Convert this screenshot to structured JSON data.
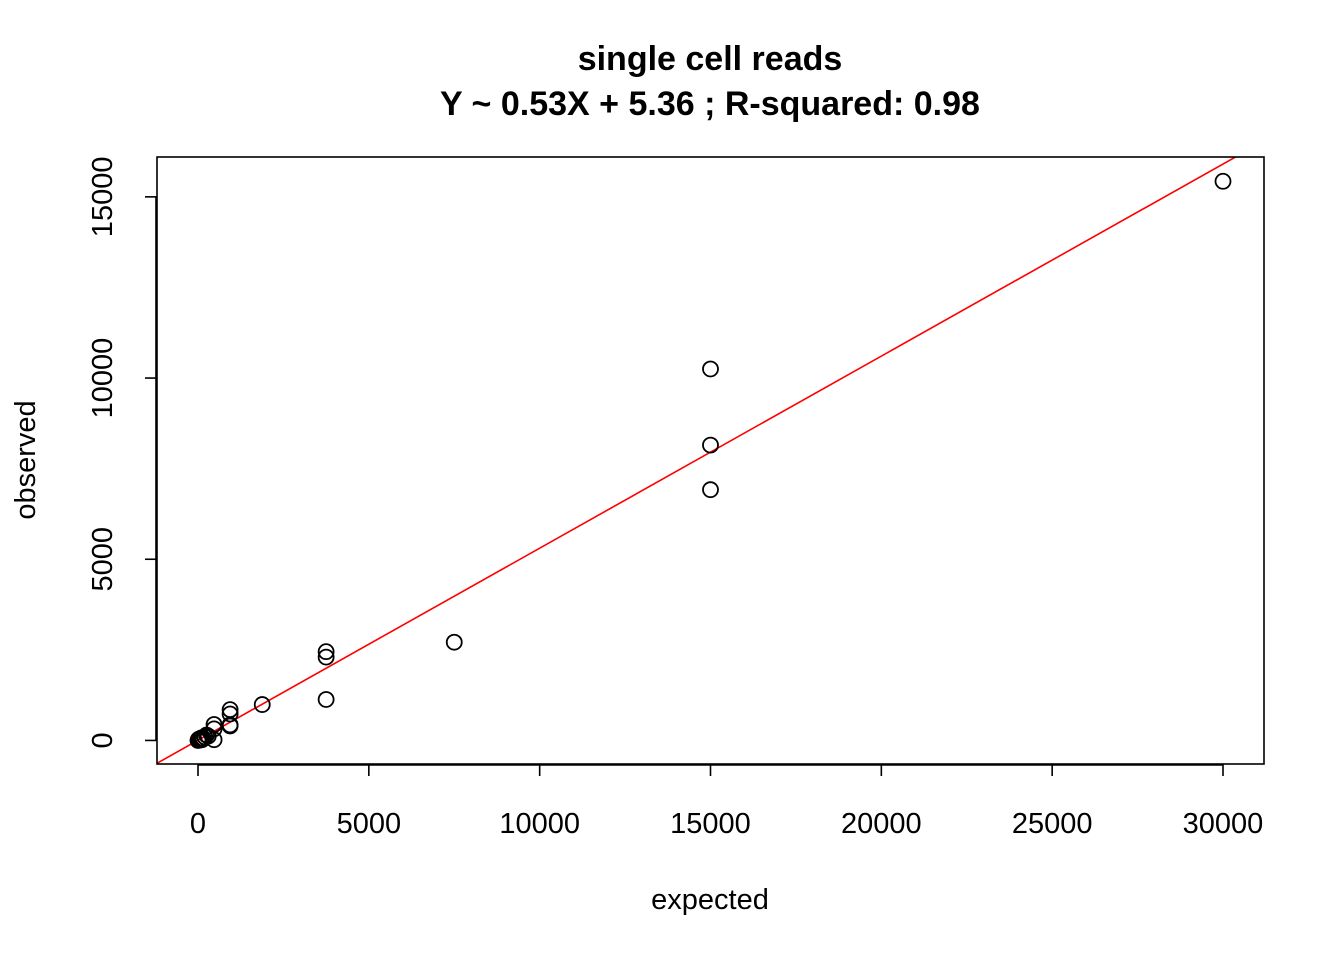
{
  "chart_data": {
    "type": "scatter",
    "title": "single cell reads",
    "subtitle": "Y ~ 0.53X + 5.36 ; R-squared: 0.98",
    "xlabel": "expected",
    "ylabel": "observed",
    "xlim": [
      -1200,
      31200
    ],
    "ylim": [
      -650,
      16100
    ],
    "x_ticks": [
      0,
      5000,
      10000,
      15000,
      20000,
      25000,
      30000
    ],
    "y_ticks": [
      0,
      5000,
      10000,
      15000
    ],
    "grid": false,
    "legend": "none",
    "fit_line": {
      "slope": 0.53,
      "intercept": 5.36,
      "color": "#ff0000"
    },
    "point_color": "#000000",
    "points": [
      {
        "x": 0,
        "y": 0
      },
      {
        "x": 10,
        "y": 20
      },
      {
        "x": 20,
        "y": 5
      },
      {
        "x": 30,
        "y": 40
      },
      {
        "x": 50,
        "y": 10
      },
      {
        "x": 60,
        "y": 30
      },
      {
        "x": 80,
        "y": 50
      },
      {
        "x": 100,
        "y": 70
      },
      {
        "x": 120,
        "y": 20
      },
      {
        "x": 150,
        "y": 60
      },
      {
        "x": 200,
        "y": 100
      },
      {
        "x": 250,
        "y": 150
      },
      {
        "x": 300,
        "y": 120
      },
      {
        "x": 470,
        "y": 320
      },
      {
        "x": 470,
        "y": 440
      },
      {
        "x": 470,
        "y": 20
      },
      {
        "x": 940,
        "y": 430
      },
      {
        "x": 940,
        "y": 400
      },
      {
        "x": 940,
        "y": 730
      },
      {
        "x": 940,
        "y": 850
      },
      {
        "x": 1880,
        "y": 990
      },
      {
        "x": 3750,
        "y": 2300
      },
      {
        "x": 3750,
        "y": 2450
      },
      {
        "x": 3750,
        "y": 1130
      },
      {
        "x": 7500,
        "y": 2710
      },
      {
        "x": 15000,
        "y": 10250
      },
      {
        "x": 15000,
        "y": 8150
      },
      {
        "x": 15000,
        "y": 6920
      },
      {
        "x": 30000,
        "y": 15430
      }
    ]
  }
}
